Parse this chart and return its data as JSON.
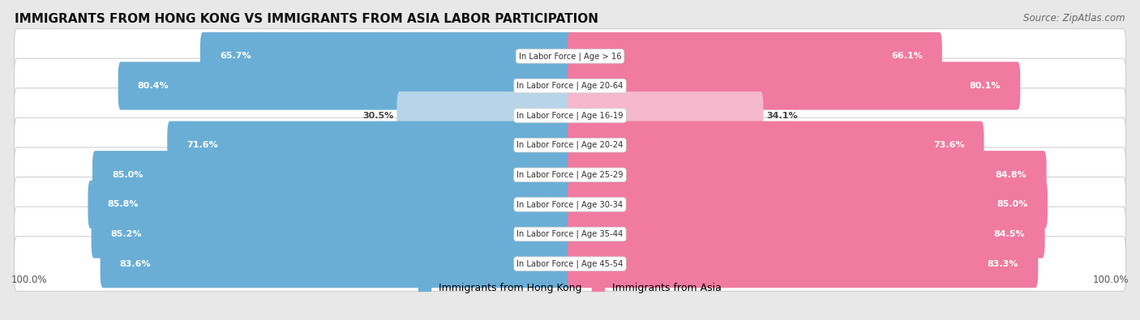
{
  "title": "IMMIGRANTS FROM HONG KONG VS IMMIGRANTS FROM ASIA LABOR PARTICIPATION",
  "source": "Source: ZipAtlas.com",
  "categories": [
    "In Labor Force | Age > 16",
    "In Labor Force | Age 20-64",
    "In Labor Force | Age 16-19",
    "In Labor Force | Age 20-24",
    "In Labor Force | Age 25-29",
    "In Labor Force | Age 30-34",
    "In Labor Force | Age 35-44",
    "In Labor Force | Age 45-54"
  ],
  "hk_values": [
    65.7,
    80.4,
    30.5,
    71.6,
    85.0,
    85.8,
    85.2,
    83.6
  ],
  "asia_values": [
    66.1,
    80.1,
    34.1,
    73.6,
    84.8,
    85.0,
    84.5,
    83.3
  ],
  "hk_color": "#6aaed6",
  "hk_color_light": "#b8d4e8",
  "asia_color": "#f07aa0",
  "asia_color_light": "#f5b8cc",
  "bg_color": "#e8e8e8",
  "row_bg": "#f5f5f5",
  "label_color_dark": "#444444",
  "label_color_white": "#ffffff",
  "max_value": 100.0,
  "legend_hk": "Immigrants from Hong Kong",
  "legend_asia": "Immigrants from Asia"
}
